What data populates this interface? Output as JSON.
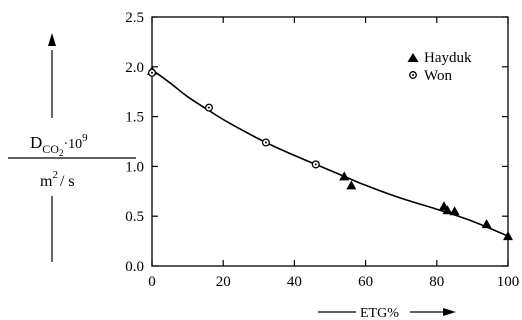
{
  "chart_data": {
    "type": "scatter",
    "x_range": [
      0,
      100
    ],
    "y_range": [
      0,
      2.5
    ],
    "x_ticks": [
      "0",
      "20",
      "40",
      "60",
      "80",
      "100"
    ],
    "y_ticks": [
      "0.0",
      "0.5",
      "1.0",
      "1.5",
      "2.0",
      "2.5"
    ],
    "ylabel": {
      "symbol": "D",
      "subscript": "CO",
      "subscript_digit": "2",
      "factor": "·10",
      "exponent": "9",
      "unit_base": "m",
      "unit_exponent": "2",
      "unit_rest": "/ s"
    },
    "xlabel": "ETG%",
    "grid": false,
    "legend_position": "top-right",
    "series": [
      {
        "name": "Hayduk",
        "marker": "triangle",
        "points": [
          [
            0,
            1.96
          ],
          [
            54,
            0.9
          ],
          [
            56,
            0.81
          ],
          [
            82,
            0.6
          ],
          [
            83,
            0.56
          ],
          [
            85,
            0.55
          ],
          [
            94,
            0.42
          ],
          [
            100,
            0.3
          ]
        ]
      },
      {
        "name": "Won",
        "marker": "circle",
        "points": [
          [
            0,
            1.94
          ],
          [
            16,
            1.59
          ],
          [
            32,
            1.24
          ],
          [
            46,
            1.02
          ]
        ]
      }
    ],
    "fit_curve": [
      [
        0,
        1.97
      ],
      [
        5,
        1.84
      ],
      [
        10,
        1.7
      ],
      [
        16,
        1.56
      ],
      [
        22,
        1.43
      ],
      [
        32,
        1.24
      ],
      [
        40,
        1.11
      ],
      [
        46,
        1.02
      ],
      [
        54,
        0.9
      ],
      [
        60,
        0.81
      ],
      [
        70,
        0.68
      ],
      [
        80,
        0.57
      ],
      [
        90,
        0.45
      ],
      [
        100,
        0.3
      ]
    ]
  }
}
